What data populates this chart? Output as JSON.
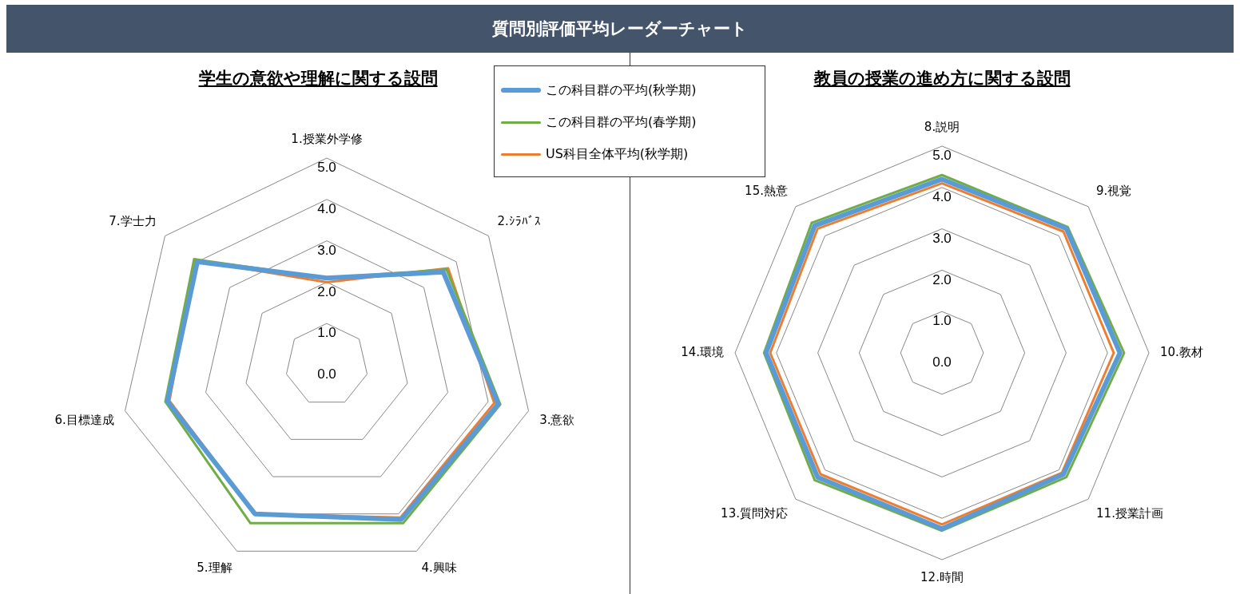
{
  "chart_data": [
    {
      "type": "radar",
      "title": "質問別評価平均レーダーチャート",
      "subtitle": "学生の意欲や理解に関する設問",
      "categories": [
        "1.授業外学修",
        "2.ｼﾗﾊﾞｽ",
        "3.意欲",
        "4.興味",
        "5.理解",
        "6.目標達成",
        "7.学士力"
      ],
      "series": [
        {
          "name": "この科目群の平均(秋学期)",
          "color": "#5b9bd5",
          "values": [
            2.1,
            3.6,
            4.25,
            4.15,
            4.0,
            3.95,
            4.0
          ]
        },
        {
          "name": "この科目群の平均(春学期)",
          "color": "#70ad47",
          "values": [
            2.1,
            3.7,
            4.3,
            4.25,
            4.25,
            4.0,
            4.1
          ]
        },
        {
          "name": "US科目全体平均(秋学期)",
          "color": "#ed7d31",
          "values": [
            2.0,
            3.75,
            4.15,
            4.1,
            4.0,
            3.9,
            4.05
          ]
        }
      ],
      "ylim": [
        0,
        5
      ],
      "yticks": [
        {
          "value": 0,
          "label": "0.0"
        },
        {
          "value": 1,
          "label": "1.0"
        },
        {
          "value": 2,
          "label": "2.0"
        },
        {
          "value": 3,
          "label": "3.0"
        },
        {
          "value": 4,
          "label": "4.0"
        },
        {
          "value": 5,
          "label": "5.0"
        }
      ],
      "grid": true,
      "legend": "top right",
      "marker": "none"
    },
    {
      "type": "radar",
      "subtitle": "教員の授業の進め方に関する設問",
      "categories": [
        "8.説明",
        "9.視覚",
        "10.教材",
        "11.授業計画",
        "12.時間",
        "13.質問対応",
        "14.環境",
        "15.熱意"
      ],
      "series": [
        {
          "color": "#5b9bd5",
          "values": [
            4.2,
            4.25,
            4.3,
            4.15,
            4.25,
            4.25,
            4.25,
            4.35
          ]
        },
        {
          "color": "#70ad47",
          "values": [
            4.3,
            4.3,
            4.4,
            4.25,
            4.3,
            4.35,
            4.3,
            4.45
          ]
        },
        {
          "color": "#ed7d31",
          "values": [
            4.1,
            4.15,
            4.15,
            4.1,
            4.15,
            4.15,
            4.15,
            4.25
          ]
        }
      ],
      "ylim": [
        0,
        5
      ],
      "yticks": [
        {
          "value": 0,
          "label": "0.0"
        },
        {
          "value": 1,
          "label": "1.0"
        },
        {
          "value": 2,
          "label": "2.0"
        },
        {
          "value": 3,
          "label": "3.0"
        },
        {
          "value": 4,
          "label": "4.0"
        },
        {
          "value": 5,
          "label": "5.0"
        }
      ],
      "grid": true,
      "legend": false,
      "marker": "none"
    }
  ]
}
